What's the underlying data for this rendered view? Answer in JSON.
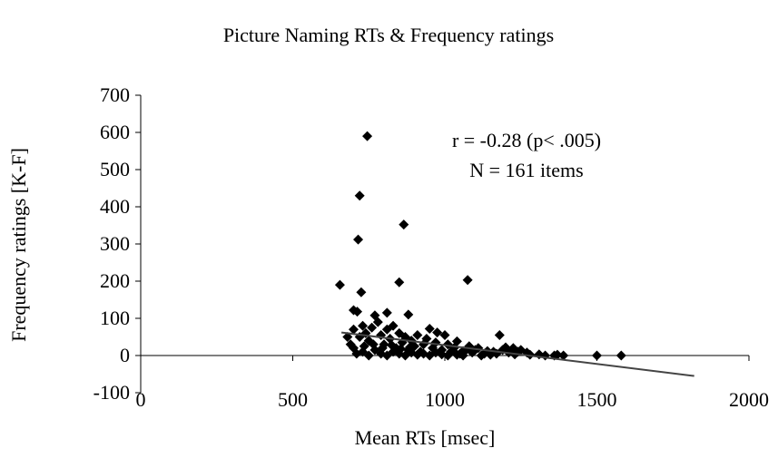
{
  "chart_data": {
    "type": "scatter",
    "title": "Picture Naming RTs & Frequency ratings",
    "xlabel": "Mean RTs [msec]",
    "ylabel": "Frequency ratings [K-F]",
    "annotations": [
      "r = -0.28 (p< .005)",
      "N = 161 items"
    ],
    "color": "#000000",
    "xlim": [
      0,
      2000
    ],
    "xticks": [
      0,
      500,
      1000,
      1500,
      2000
    ],
    "ylim": [
      -100,
      700
    ],
    "yticks": [
      -100,
      0,
      100,
      200,
      300,
      400,
      500,
      600,
      700
    ],
    "x": [
      745,
      720,
      715,
      865,
      850,
      1075,
      655,
      725,
      700,
      712,
      770,
      810,
      880,
      950,
      975,
      1000,
      1180,
      1040,
      1080,
      1500,
      1580,
      1390,
      1360,
      1310,
      1250,
      1270,
      1225,
      1200,
      1160,
      1130,
      1100,
      1060,
      690,
      700,
      720,
      730,
      740,
      750,
      760,
      780,
      790,
      800,
      810,
      820,
      830,
      840,
      850,
      860,
      870,
      880,
      890,
      900,
      910,
      920,
      930,
      940,
      960,
      970,
      990,
      1010,
      1020,
      1030,
      1050,
      1070,
      1090,
      1110,
      1140,
      1170,
      1190,
      1210,
      1230,
      1240,
      1280,
      1330,
      710,
      730,
      750,
      770,
      790,
      810,
      830,
      850,
      870,
      890,
      910,
      930,
      950,
      970,
      990,
      1010,
      1040,
      1060,
      1120,
      1150,
      735,
      765,
      795,
      825,
      855,
      885,
      700,
      680,
      1370
    ],
    "y": [
      590,
      430,
      312,
      352,
      197,
      203,
      190,
      170,
      122,
      118,
      108,
      115,
      110,
      72,
      62,
      55,
      55,
      38,
      25,
      0,
      0,
      0,
      0,
      3,
      15,
      8,
      20,
      22,
      10,
      5,
      15,
      12,
      30,
      20,
      50,
      80,
      60,
      40,
      75,
      90,
      55,
      30,
      70,
      45,
      80,
      20,
      60,
      35,
      50,
      15,
      40,
      25,
      55,
      10,
      30,
      45,
      20,
      35,
      15,
      30,
      10,
      20,
      5,
      15,
      8,
      20,
      12,
      5,
      15,
      8,
      3,
      10,
      2,
      0,
      5,
      10,
      0,
      15,
      5,
      0,
      10,
      5,
      0,
      8,
      2,
      5,
      0,
      8,
      3,
      0,
      2,
      0,
      0,
      2,
      25,
      30,
      20,
      28,
      18,
      22,
      70,
      50,
      2
    ],
    "trendline": {
      "x": [
        660,
        1820
      ],
      "y": [
        62,
        -55
      ]
    }
  }
}
